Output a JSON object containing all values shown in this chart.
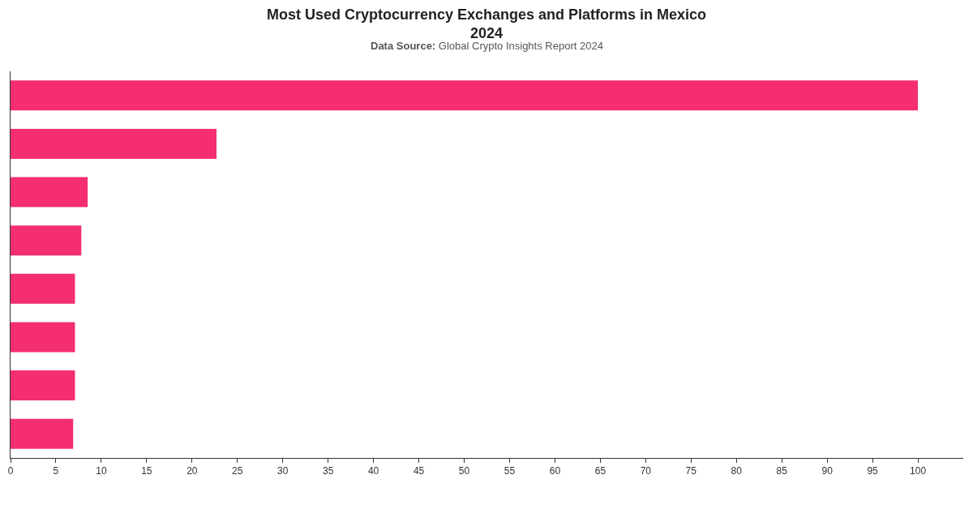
{
  "chart_data": {
    "type": "bar",
    "orientation": "horizontal",
    "title": "Most Used Cryptocurrency Exchanges and Platforms in Mexico\n2024",
    "subtitle": "Data Source: Global Crypto Insights Report 2024",
    "categories": [
      null,
      null,
      null,
      null,
      null,
      null,
      null,
      null
    ],
    "values": [
      100,
      22.7,
      8.5,
      7.8,
      7.1,
      7.1,
      7.1,
      6.9
    ],
    "color": "#f52d72",
    "xlim": [
      0,
      105
    ],
    "xticks": [
      0,
      5,
      10,
      15,
      20,
      25,
      30,
      35,
      40,
      45,
      50,
      55,
      60,
      65,
      70,
      75,
      80,
      85,
      90,
      95,
      100
    ],
    "legend": false
  }
}
